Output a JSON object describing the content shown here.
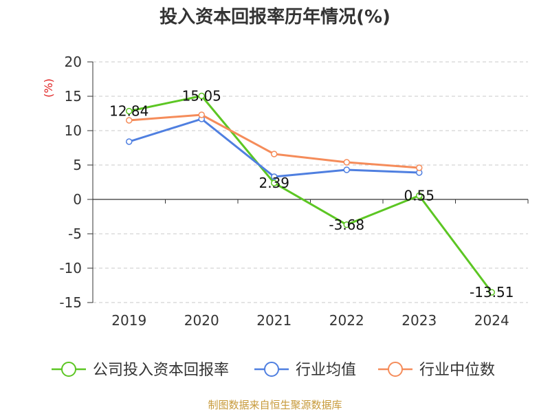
{
  "chart_data": {
    "type": "line",
    "title": "投入资本回报率历年情况(%)",
    "ylabel": "(%)",
    "xlabel": "",
    "categories": [
      "2019",
      "2020",
      "2021",
      "2022",
      "2023",
      "2024"
    ],
    "ylim": [
      -15,
      20
    ],
    "yticks": [
      20,
      15,
      10,
      5,
      0,
      -5,
      -10,
      -15
    ],
    "ytick_labels": [
      "20",
      "15",
      "10",
      "5",
      "0",
      "-5",
      "-10",
      "-15"
    ],
    "grid": true,
    "legend_position": "bottom",
    "series": [
      {
        "name": "公司投入资本回报率",
        "color": "#5cc623",
        "values": [
          12.84,
          15.05,
          2.39,
          -3.68,
          0.55,
          -13.51
        ],
        "labels": [
          "12.84",
          "15.05",
          "2.39",
          "-3.68",
          "0.55",
          "-13.51"
        ]
      },
      {
        "name": "行业均值",
        "color": "#4f7fe0",
        "values": [
          8.4,
          11.7,
          3.3,
          4.3,
          3.9,
          null
        ]
      },
      {
        "name": "行业中位数",
        "color": "#f58c5a",
        "values": [
          11.5,
          12.3,
          6.6,
          5.4,
          4.6,
          null
        ]
      }
    ]
  },
  "footer": {
    "source": "制图数据来自恒生聚源数据库"
  }
}
